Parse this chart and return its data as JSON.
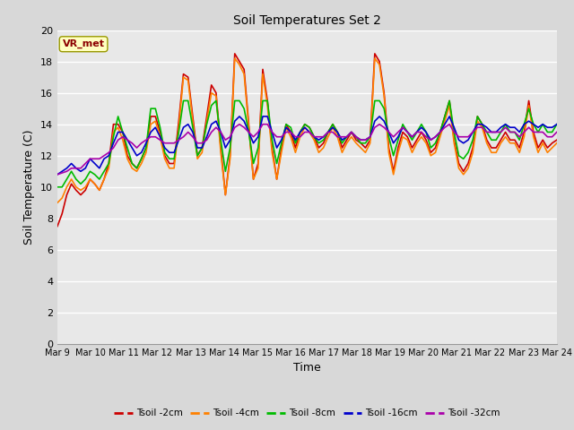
{
  "title": "Soil Temperatures Set 2",
  "xlabel": "Time",
  "ylabel": "Soil Temperature (C)",
  "ylim": [
    0,
    20
  ],
  "yticks": [
    0,
    2,
    4,
    6,
    8,
    10,
    12,
    14,
    16,
    18,
    20
  ],
  "x_labels": [
    "Mar 9",
    "Mar 10",
    "Mar 11",
    "Mar 12",
    "Mar 13",
    "Mar 14",
    "Mar 15",
    "Mar 16",
    "Mar 17",
    "Mar 18",
    "Mar 19",
    "Mar 20",
    "Mar 21",
    "Mar 22",
    "Mar 23",
    "Mar 24"
  ],
  "annotation_text": "VR_met",
  "annotation_color": "#8B0000",
  "annotation_bg": "#FFFFC0",
  "bg_color": "#D8D8D8",
  "plot_bg": "#E8E8E8",
  "grid_color": "#FFFFFF",
  "series": [
    {
      "label": "Tsoil -2cm",
      "color": "#CC0000",
      "lw": 1.2
    },
    {
      "label": "Tsoil -4cm",
      "color": "#FF8000",
      "lw": 1.2
    },
    {
      "label": "Tsoil -8cm",
      "color": "#00BB00",
      "lw": 1.2
    },
    {
      "label": "Tsoil -16cm",
      "color": "#0000CC",
      "lw": 1.2
    },
    {
      "label": "Tsoil -32cm",
      "color": "#AA00AA",
      "lw": 1.2
    }
  ],
  "tsoil_2cm": [
    7.5,
    8.3,
    9.5,
    10.2,
    9.8,
    9.5,
    9.8,
    10.5,
    10.2,
    9.8,
    10.5,
    11.5,
    14.0,
    14.0,
    13.5,
    12.0,
    11.5,
    11.2,
    11.8,
    12.5,
    14.5,
    14.5,
    13.5,
    12.0,
    11.5,
    11.5,
    14.2,
    17.2,
    17.0,
    14.5,
    12.0,
    12.5,
    14.5,
    16.5,
    16.0,
    12.5,
    9.5,
    12.0,
    18.5,
    18.0,
    17.5,
    14.0,
    10.5,
    11.5,
    17.5,
    15.5,
    12.5,
    10.5,
    12.5,
    14.0,
    13.5,
    12.5,
    13.5,
    14.0,
    13.8,
    13.2,
    12.5,
    12.8,
    13.5,
    14.0,
    13.5,
    12.5,
    13.0,
    13.5,
    13.0,
    12.8,
    12.5,
    13.0,
    18.5,
    18.0,
    16.0,
    12.5,
    11.0,
    12.5,
    13.5,
    13.2,
    12.5,
    13.0,
    13.5,
    13.0,
    12.2,
    12.5,
    13.5,
    14.5,
    15.5,
    13.0,
    11.5,
    11.0,
    11.5,
    12.5,
    14.5,
    14.0,
    13.0,
    12.5,
    12.5,
    13.0,
    13.5,
    13.0,
    13.0,
    12.5,
    13.5,
    15.5,
    13.5,
    12.5,
    13.0,
    12.5,
    12.8,
    13.0
  ],
  "tsoil_4cm": [
    9.0,
    9.3,
    10.0,
    10.5,
    10.0,
    9.8,
    10.0,
    10.5,
    10.2,
    9.8,
    10.5,
    11.2,
    13.5,
    13.8,
    13.0,
    11.8,
    11.2,
    11.0,
    11.5,
    12.2,
    14.0,
    14.2,
    13.2,
    11.8,
    11.2,
    11.2,
    13.8,
    17.0,
    16.8,
    14.2,
    11.8,
    12.2,
    14.2,
    16.0,
    15.8,
    12.2,
    9.5,
    11.8,
    18.2,
    17.8,
    17.2,
    13.8,
    10.5,
    11.2,
    17.2,
    15.2,
    12.2,
    10.5,
    12.2,
    13.8,
    13.2,
    12.2,
    13.2,
    13.8,
    13.5,
    13.0,
    12.2,
    12.5,
    13.2,
    13.8,
    13.2,
    12.2,
    12.8,
    13.2,
    12.8,
    12.5,
    12.2,
    12.8,
    18.2,
    17.8,
    15.8,
    12.2,
    10.8,
    12.2,
    13.2,
    13.0,
    12.2,
    12.8,
    13.2,
    12.8,
    12.0,
    12.2,
    13.2,
    14.2,
    15.2,
    12.8,
    11.2,
    10.8,
    11.2,
    12.2,
    14.2,
    13.8,
    12.8,
    12.2,
    12.2,
    12.8,
    13.2,
    12.8,
    12.8,
    12.2,
    13.2,
    15.2,
    13.2,
    12.2,
    12.8,
    12.2,
    12.5,
    12.8
  ],
  "tsoil_8cm": [
    10.0,
    10.0,
    10.5,
    11.0,
    10.5,
    10.2,
    10.5,
    11.0,
    10.8,
    10.5,
    11.0,
    11.5,
    13.2,
    14.5,
    13.5,
    12.5,
    11.5,
    11.2,
    11.8,
    12.5,
    15.0,
    15.0,
    13.8,
    12.2,
    11.8,
    11.8,
    13.5,
    15.5,
    15.5,
    13.8,
    12.0,
    12.5,
    14.0,
    15.2,
    15.5,
    13.0,
    11.0,
    12.5,
    15.5,
    15.5,
    15.0,
    13.5,
    11.5,
    12.5,
    15.5,
    15.5,
    13.0,
    11.5,
    12.8,
    14.0,
    13.8,
    12.8,
    13.5,
    14.0,
    13.8,
    13.2,
    12.8,
    13.0,
    13.5,
    14.0,
    13.5,
    12.8,
    13.2,
    13.5,
    13.2,
    12.8,
    12.8,
    13.2,
    15.5,
    15.5,
    15.0,
    13.2,
    12.0,
    13.0,
    14.0,
    13.5,
    13.0,
    13.5,
    14.0,
    13.5,
    12.5,
    12.8,
    13.5,
    14.5,
    15.5,
    13.5,
    12.0,
    11.8,
    12.2,
    13.0,
    14.5,
    14.0,
    13.5,
    13.0,
    13.0,
    13.5,
    14.0,
    13.5,
    13.5,
    13.0,
    14.0,
    15.0,
    14.0,
    13.5,
    14.0,
    13.5,
    13.5,
    14.0
  ],
  "tsoil_16cm": [
    10.8,
    11.0,
    11.2,
    11.5,
    11.2,
    11.0,
    11.2,
    11.8,
    11.5,
    11.2,
    11.8,
    12.0,
    12.8,
    13.5,
    13.5,
    13.0,
    12.5,
    12.0,
    12.2,
    12.8,
    13.5,
    13.8,
    13.2,
    12.5,
    12.2,
    12.2,
    13.0,
    13.8,
    14.0,
    13.5,
    12.5,
    12.5,
    13.2,
    14.0,
    14.2,
    13.5,
    12.5,
    13.0,
    14.2,
    14.5,
    14.2,
    13.5,
    12.8,
    13.2,
    14.5,
    14.5,
    13.5,
    12.5,
    13.0,
    13.8,
    13.5,
    13.0,
    13.5,
    13.8,
    13.5,
    13.2,
    13.0,
    13.2,
    13.5,
    13.8,
    13.5,
    13.0,
    13.2,
    13.5,
    13.2,
    13.0,
    13.0,
    13.2,
    14.2,
    14.5,
    14.2,
    13.5,
    12.8,
    13.2,
    13.8,
    13.5,
    13.2,
    13.5,
    13.8,
    13.5,
    13.0,
    13.2,
    13.5,
    14.0,
    14.5,
    13.8,
    13.0,
    12.8,
    13.0,
    13.5,
    14.0,
    14.0,
    13.8,
    13.5,
    13.5,
    13.8,
    14.0,
    13.8,
    13.8,
    13.5,
    14.0,
    14.2,
    14.0,
    13.8,
    14.0,
    13.8,
    13.8,
    14.0
  ],
  "tsoil_32cm": [
    10.8,
    10.9,
    11.0,
    11.2,
    11.2,
    11.2,
    11.5,
    11.8,
    11.8,
    11.8,
    12.0,
    12.2,
    12.5,
    13.0,
    13.2,
    13.0,
    12.8,
    12.5,
    12.8,
    13.0,
    13.2,
    13.2,
    13.0,
    12.8,
    12.8,
    12.8,
    13.0,
    13.2,
    13.5,
    13.2,
    12.8,
    12.8,
    13.0,
    13.5,
    13.8,
    13.5,
    13.0,
    13.2,
    13.8,
    14.0,
    13.8,
    13.5,
    13.2,
    13.5,
    14.0,
    14.0,
    13.5,
    13.2,
    13.2,
    13.5,
    13.5,
    13.2,
    13.2,
    13.5,
    13.5,
    13.2,
    13.2,
    13.2,
    13.5,
    13.5,
    13.2,
    13.2,
    13.2,
    13.5,
    13.2,
    13.0,
    13.0,
    13.2,
    13.8,
    14.0,
    13.8,
    13.5,
    13.2,
    13.5,
    13.8,
    13.5,
    13.2,
    13.5,
    13.5,
    13.2,
    13.0,
    13.2,
    13.5,
    13.8,
    14.0,
    13.5,
    13.2,
    13.2,
    13.2,
    13.5,
    13.8,
    13.8,
    13.5,
    13.5,
    13.5,
    13.5,
    13.8,
    13.5,
    13.5,
    13.2,
    13.5,
    13.8,
    13.5,
    13.5,
    13.5,
    13.2,
    13.2,
    13.5
  ]
}
